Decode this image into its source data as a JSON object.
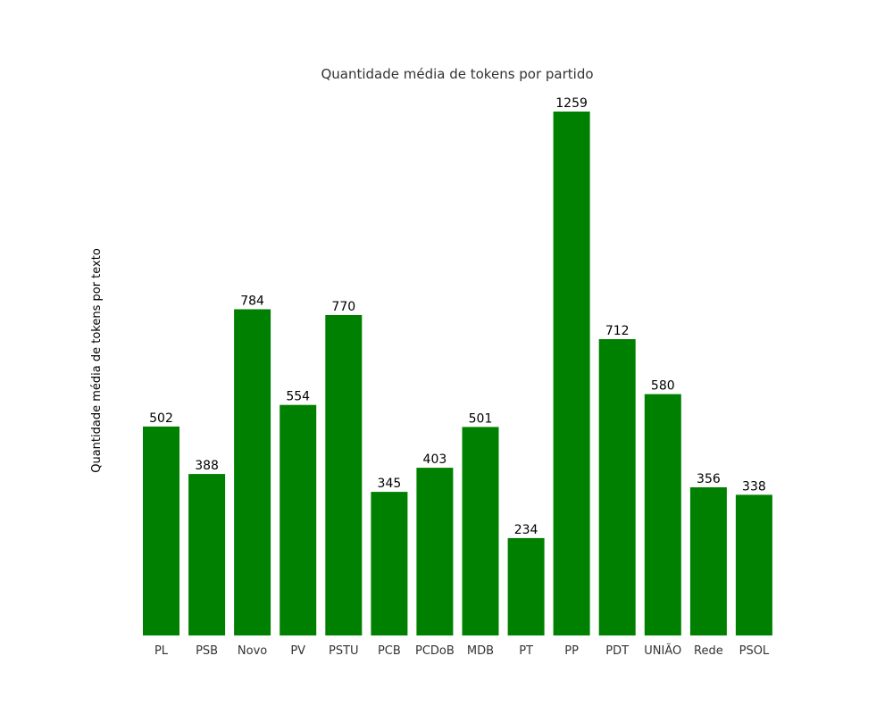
{
  "chart_data": {
    "type": "bar",
    "title": "Quantidade média de tokens por partido",
    "xlabel": "",
    "ylabel": "Quantidade média de tokens por texto",
    "categories": [
      "PL",
      "PSB",
      "Novo",
      "PV",
      "PSTU",
      "PCB",
      "PCDoB",
      "MDB",
      "PT",
      "PP",
      "PDT",
      "UNIÃO",
      "Rede",
      "PSOL"
    ],
    "values": [
      502,
      388,
      784,
      554,
      770,
      345,
      403,
      501,
      234,
      1259,
      712,
      580,
      356,
      338
    ],
    "ylim": [
      0,
      1259
    ],
    "grid": false,
    "bar_color": "#008000",
    "value_labels_shown": true,
    "y_axis_ticks_shown": false
  }
}
